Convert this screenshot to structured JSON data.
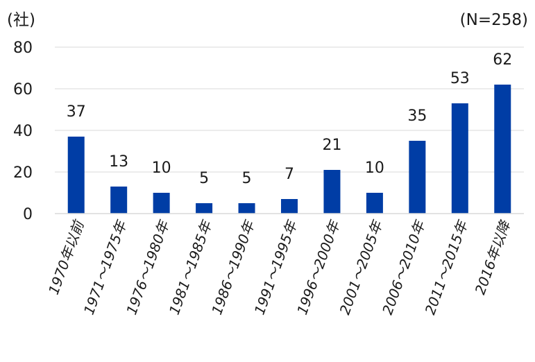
{
  "chart_data": {
    "type": "bar",
    "unit_label": "(社)",
    "sample_note": "(N=258)",
    "categories": [
      "1970年以前",
      "1971～1975年",
      "1976～1980年",
      "1981～1985年",
      "1986～1990年",
      "1991～1995年",
      "1996～2000年",
      "2001～2005年",
      "2006～2010年",
      "2011～2015年",
      "2016年以降"
    ],
    "values": [
      37,
      13,
      10,
      5,
      5,
      7,
      21,
      10,
      35,
      53,
      62
    ],
    "ylim": [
      0,
      80
    ],
    "yticks": [
      0,
      20,
      40,
      60,
      80
    ],
    "grid": true,
    "bar_color": "#003DA5",
    "grid_color": "#D9D9D9"
  }
}
